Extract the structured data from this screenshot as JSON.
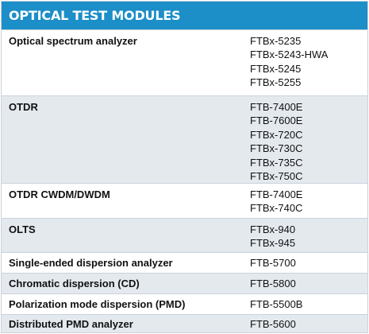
{
  "header": {
    "title": "OPTICAL TEST MODULES"
  },
  "rows": [
    {
      "name": "Optical spectrum analyzer",
      "models": [
        "FTBx-5235",
        "FTBx-5243-HWA",
        "FTBx-5245",
        "FTBx-5255"
      ]
    },
    {
      "name": "OTDR",
      "models": [
        "FTB-7400E",
        "FTB-7600E",
        "FTBx-720C",
        "FTBx-730C",
        "FTBx-735C",
        "FTBx-750C"
      ]
    },
    {
      "name": "OTDR CWDM/DWDM",
      "models": [
        "FTB-7400E",
        "FTBx-740C"
      ]
    },
    {
      "name": "OLTS",
      "models": [
        "FTBx-940",
        "FTBx-945"
      ]
    },
    {
      "name": "Single-ended dispersion analyzer",
      "models": [
        "FTB-5700"
      ]
    },
    {
      "name": "Chromatic dispersion (CD)",
      "models": [
        "FTB-5800"
      ]
    },
    {
      "name": "Polarization mode dispersion (PMD)",
      "models": [
        "FTB-5500B"
      ]
    },
    {
      "name": "Distributed PMD analyzer",
      "models": [
        "FTB-5600"
      ]
    }
  ]
}
